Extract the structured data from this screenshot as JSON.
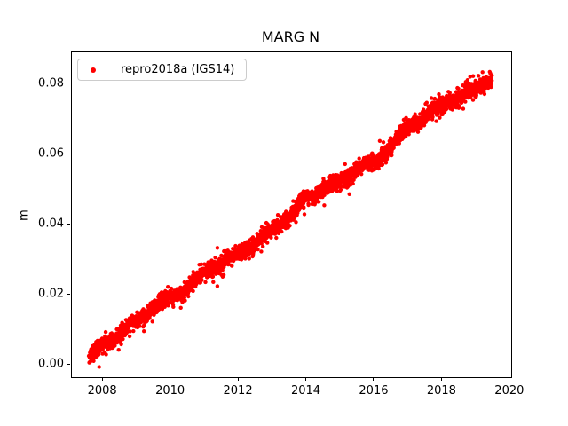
{
  "figure": {
    "title": "MARG N"
  },
  "chart_data": {
    "type": "scatter",
    "title": "MARG N",
    "xlabel": "",
    "ylabel": "m",
    "xlim": [
      2007.08,
      2020.03
    ],
    "ylim": [
      -0.0035,
      0.0891
    ],
    "grid": false,
    "x_ticks": [
      {
        "v": 2008,
        "label": "2008"
      },
      {
        "v": 2010,
        "label": "2010"
      },
      {
        "v": 2012,
        "label": "2012"
      },
      {
        "v": 2014,
        "label": "2014"
      },
      {
        "v": 2016,
        "label": "2016"
      },
      {
        "v": 2018,
        "label": "2018"
      },
      {
        "v": 2020,
        "label": "2020"
      }
    ],
    "y_ticks": [
      {
        "v": 0.0,
        "label": "0.00"
      },
      {
        "v": 0.02,
        "label": "0.02"
      },
      {
        "v": 0.04,
        "label": "0.04"
      },
      {
        "v": 0.06,
        "label": "0.06"
      },
      {
        "v": 0.08,
        "label": "0.08"
      }
    ],
    "legend": {
      "position": "upper left",
      "entries": [
        {
          "label": "repro2018a (IGS14)",
          "marker": "dot",
          "color": "#ff0000"
        }
      ]
    },
    "series": [
      {
        "name": "repro2018a (IGS14)",
        "color": "#ff0000",
        "marker": "dot",
        "marker_radius_px": 2.2,
        "n_points": 3400,
        "seed": 20180714,
        "x_range": [
          2007.58,
          2019.47
        ],
        "noise_std_m": 0.0011,
        "seasonal_amplitude_m": 0.0006,
        "outlier_fraction": 0.015,
        "outlier_extra_m": 0.003,
        "trend_anchors": [
          [
            2007.58,
            0.0015
          ],
          [
            2008.0,
            0.006
          ],
          [
            2008.5,
            0.0085
          ],
          [
            2009.0,
            0.0125
          ],
          [
            2009.5,
            0.016
          ],
          [
            2010.0,
            0.0195
          ],
          [
            2010.5,
            0.022
          ],
          [
            2011.0,
            0.0265
          ],
          [
            2011.5,
            0.029
          ],
          [
            2012.0,
            0.032
          ],
          [
            2012.5,
            0.0345
          ],
          [
            2013.0,
            0.039
          ],
          [
            2013.5,
            0.042
          ],
          [
            2014.0,
            0.0475
          ],
          [
            2014.5,
            0.05
          ],
          [
            2015.0,
            0.052
          ],
          [
            2015.5,
            0.056
          ],
          [
            2016.0,
            0.0575
          ],
          [
            2016.5,
            0.0625
          ],
          [
            2017.0,
            0.068
          ],
          [
            2017.5,
            0.0705
          ],
          [
            2018.0,
            0.0745
          ],
          [
            2018.5,
            0.076
          ],
          [
            2019.0,
            0.079
          ],
          [
            2019.47,
            0.082
          ]
        ]
      }
    ]
  }
}
